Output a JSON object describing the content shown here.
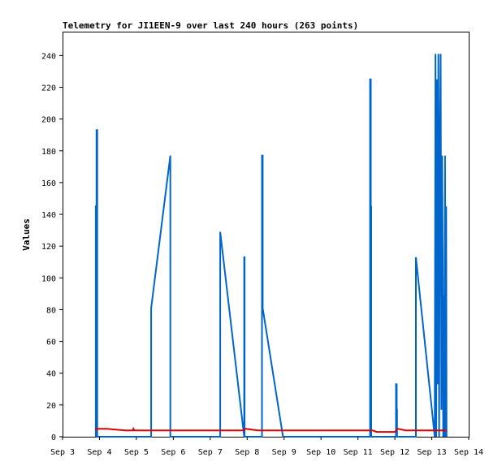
{
  "chart_data": {
    "type": "line",
    "title": "Telemetry for JI1EEN-9 over last 240 hours (263 points)",
    "ylabel": "Values",
    "xlabel": "",
    "ylim": [
      0,
      255
    ],
    "xlim": [
      "Sep 3",
      "Sep 14"
    ],
    "x_ticks": [
      "Sep 3",
      "Sep 4",
      "Sep 5",
      "Sep 6",
      "Sep 7",
      "Sep 8",
      "Sep 9",
      "Sep 10",
      "Sep 11",
      "Sep 12",
      "Sep 13",
      "Sep 14"
    ],
    "y_ticks": [
      0,
      20,
      40,
      60,
      80,
      100,
      120,
      140,
      160,
      180,
      200,
      220,
      240
    ],
    "grid": false,
    "series": [
      {
        "color": "#0066cc",
        "points": [
          [
            0.9,
            0
          ],
          [
            0.9,
            145
          ],
          [
            0.92,
            145
          ],
          [
            0.92,
            193
          ],
          [
            0.94,
            193
          ],
          [
            0.94,
            0
          ],
          [
            2.4,
            0
          ],
          [
            2.4,
            81
          ],
          [
            2.92,
            177
          ],
          [
            2.92,
            0
          ],
          [
            4.27,
            0
          ],
          [
            4.27,
            129
          ],
          [
            4.92,
            0
          ],
          [
            4.92,
            113
          ],
          [
            4.93,
            113
          ],
          [
            4.93,
            0
          ],
          [
            5.4,
            0
          ],
          [
            5.4,
            177
          ],
          [
            5.42,
            177
          ],
          [
            5.42,
            81
          ],
          [
            5.97,
            0
          ],
          [
            8.33,
            0
          ],
          [
            8.33,
            225
          ],
          [
            8.35,
            225
          ],
          [
            8.35,
            145
          ],
          [
            8.36,
            145
          ],
          [
            8.36,
            0
          ],
          [
            9.03,
            0
          ],
          [
            9.03,
            33
          ],
          [
            9.05,
            33
          ],
          [
            9.05,
            17
          ],
          [
            9.06,
            17
          ],
          [
            9.06,
            0
          ],
          [
            9.57,
            0
          ],
          [
            9.57,
            113
          ],
          [
            10.08,
            0
          ],
          [
            10.1,
            241
          ],
          [
            10.12,
            0
          ],
          [
            10.14,
            225
          ],
          [
            10.16,
            33
          ],
          [
            10.18,
            241
          ],
          [
            10.2,
            0
          ],
          [
            10.22,
            177
          ],
          [
            10.24,
            241
          ],
          [
            10.26,
            17
          ],
          [
            10.28,
            177
          ],
          [
            10.3,
            97
          ],
          [
            10.31,
            0
          ],
          [
            10.32,
            89
          ],
          [
            10.34,
            0
          ],
          [
            10.36,
            177
          ],
          [
            10.38,
            0
          ],
          [
            10.39,
            145
          ],
          [
            10.4,
            0
          ]
        ]
      },
      {
        "color": "#dd0000",
        "points": [
          [
            0.9,
            4
          ],
          [
            0.92,
            5
          ],
          [
            1.2,
            5
          ],
          [
            1.7,
            4
          ],
          [
            1.9,
            4
          ],
          [
            1.92,
            5
          ],
          [
            1.94,
            4
          ],
          [
            2.4,
            4
          ],
          [
            3.0,
            4
          ],
          [
            4.0,
            4
          ],
          [
            4.9,
            4
          ],
          [
            4.95,
            5
          ],
          [
            5.3,
            4
          ],
          [
            5.6,
            4
          ],
          [
            6.0,
            4
          ],
          [
            7.0,
            4
          ],
          [
            8.0,
            4
          ],
          [
            8.4,
            4
          ],
          [
            8.5,
            3
          ],
          [
            9.0,
            3
          ],
          [
            9.08,
            5
          ],
          [
            9.3,
            4
          ],
          [
            9.6,
            4
          ],
          [
            10.0,
            4
          ],
          [
            10.4,
            4
          ]
        ]
      }
    ]
  }
}
